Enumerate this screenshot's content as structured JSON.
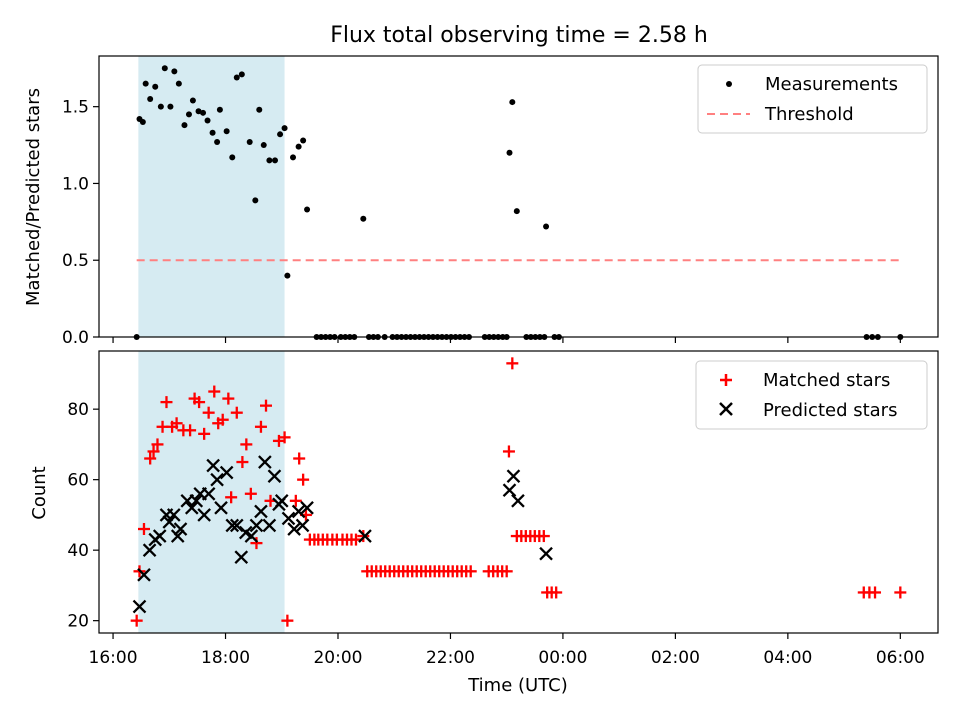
{
  "chart_data": [
    {
      "type": "scatter",
      "title": "Flux total observing time = 2.58 h",
      "xlabel": "",
      "ylabel": "Matched/Predicted stars",
      "ylim": [
        0,
        1.83
      ],
      "yticks": [
        "0.0",
        "0.5",
        "1.0",
        "1.5"
      ],
      "ytick_values": [
        0,
        0.5,
        1.0,
        1.5
      ],
      "shaded_interval": {
        "start_h": 16.45,
        "end_h": 19.05,
        "color": "#add8e6"
      },
      "series": [
        {
          "name": "Measurements",
          "marker": "dot",
          "color": "#000000",
          "points": [
            [
              16.42,
              0
            ],
            [
              16.47,
              1.42
            ],
            [
              16.53,
              1.4
            ],
            [
              16.58,
              1.65
            ],
            [
              16.66,
              1.55
            ],
            [
              16.75,
              1.63
            ],
            [
              16.85,
              1.5
            ],
            [
              16.92,
              1.75
            ],
            [
              17.02,
              1.5
            ],
            [
              17.09,
              1.73
            ],
            [
              17.17,
              1.65
            ],
            [
              17.27,
              1.38
            ],
            [
              17.35,
              1.45
            ],
            [
              17.42,
              1.54
            ],
            [
              17.52,
              1.47
            ],
            [
              17.6,
              1.46
            ],
            [
              17.68,
              1.41
            ],
            [
              17.77,
              1.33
            ],
            [
              17.85,
              1.27
            ],
            [
              17.9,
              1.48
            ],
            [
              18.02,
              1.34
            ],
            [
              18.12,
              1.17
            ],
            [
              18.2,
              1.69
            ],
            [
              18.29,
              1.71
            ],
            [
              18.43,
              1.27
            ],
            [
              18.53,
              0.89
            ],
            [
              18.6,
              1.48
            ],
            [
              18.68,
              1.25
            ],
            [
              18.78,
              1.15
            ],
            [
              18.88,
              1.15
            ],
            [
              18.97,
              1.32
            ],
            [
              19.05,
              1.36
            ],
            [
              19.1,
              0.4
            ],
            [
              19.2,
              1.17
            ],
            [
              19.3,
              1.24
            ],
            [
              19.38,
              1.28
            ],
            [
              19.45,
              0.83
            ],
            [
              19.62,
              0
            ],
            [
              19.7,
              0
            ],
            [
              19.78,
              0
            ],
            [
              19.86,
              0
            ],
            [
              19.94,
              0
            ],
            [
              20.05,
              0
            ],
            [
              20.13,
              0
            ],
            [
              20.21,
              0
            ],
            [
              20.29,
              0
            ],
            [
              20.45,
              0.77
            ],
            [
              20.55,
              0
            ],
            [
              20.63,
              0
            ],
            [
              20.71,
              0
            ],
            [
              20.83,
              0
            ],
            [
              20.97,
              0
            ],
            [
              21.05,
              0
            ],
            [
              21.13,
              0
            ],
            [
              21.21,
              0
            ],
            [
              21.29,
              0
            ],
            [
              21.37,
              0
            ],
            [
              21.45,
              0
            ],
            [
              21.53,
              0
            ],
            [
              21.61,
              0
            ],
            [
              21.69,
              0
            ],
            [
              21.77,
              0
            ],
            [
              21.85,
              0
            ],
            [
              21.93,
              0
            ],
            [
              22.01,
              0
            ],
            [
              22.09,
              0
            ],
            [
              22.17,
              0
            ],
            [
              22.25,
              0
            ],
            [
              22.33,
              0
            ],
            [
              22.61,
              0
            ],
            [
              22.69,
              0
            ],
            [
              22.77,
              0
            ],
            [
              22.85,
              0
            ],
            [
              22.93,
              0
            ],
            [
              23.0,
              0
            ],
            [
              23.05,
              1.2
            ],
            [
              23.1,
              1.53
            ],
            [
              23.18,
              0.82
            ],
            [
              23.35,
              0
            ],
            [
              23.43,
              0
            ],
            [
              23.51,
              0
            ],
            [
              23.59,
              0
            ],
            [
              23.67,
              0
            ],
            [
              23.7,
              0.72
            ],
            [
              23.85,
              0
            ],
            [
              23.93,
              0
            ],
            [
              29.4,
              0
            ],
            [
              29.5,
              0
            ],
            [
              29.6,
              0
            ],
            [
              30.0,
              0
            ]
          ]
        },
        {
          "name": "Threshold",
          "marker": "dashed-line",
          "color": "#ff8080",
          "points": [
            [
              16.42,
              0.5
            ],
            [
              30.0,
              0.5
            ]
          ]
        }
      ],
      "legend": "top-right"
    },
    {
      "type": "scatter",
      "title": "",
      "xlabel": "Time (UTC)",
      "ylabel": "Count",
      "ylim": [
        16.5,
        96.5
      ],
      "yticks": [
        "20",
        "40",
        "60",
        "80"
      ],
      "ytick_values": [
        20,
        40,
        60,
        80
      ],
      "xlim_h": [
        15.75,
        30.67
      ],
      "xticks": [
        "16:00",
        "18:00",
        "20:00",
        "22:00",
        "00:00",
        "02:00",
        "04:00",
        "06:00"
      ],
      "xtick_values_h": [
        16,
        18,
        20,
        22,
        24,
        26,
        28,
        30
      ],
      "shaded_interval": {
        "start_h": 16.45,
        "end_h": 19.05,
        "color": "#add8e6"
      },
      "series": [
        {
          "name": "Matched stars",
          "marker": "plus",
          "color": "#ff0000",
          "points": [
            [
              16.42,
              20
            ],
            [
              16.47,
              34
            ],
            [
              16.55,
              46
            ],
            [
              16.66,
              66
            ],
            [
              16.72,
              68
            ],
            [
              16.79,
              70
            ],
            [
              16.88,
              75
            ],
            [
              16.95,
              82
            ],
            [
              17.05,
              75
            ],
            [
              17.13,
              76
            ],
            [
              17.25,
              74
            ],
            [
              17.37,
              74
            ],
            [
              17.45,
              83
            ],
            [
              17.53,
              82
            ],
            [
              17.62,
              73
            ],
            [
              17.7,
              79
            ],
            [
              17.8,
              85
            ],
            [
              17.87,
              76
            ],
            [
              17.95,
              77
            ],
            [
              18.05,
              83
            ],
            [
              18.1,
              55
            ],
            [
              18.2,
              79
            ],
            [
              18.3,
              65
            ],
            [
              18.37,
              70
            ],
            [
              18.45,
              56
            ],
            [
              18.55,
              42
            ],
            [
              18.63,
              75
            ],
            [
              18.72,
              81
            ],
            [
              18.8,
              54
            ],
            [
              18.95,
              71
            ],
            [
              19.05,
              72
            ],
            [
              19.1,
              20
            ],
            [
              19.25,
              54
            ],
            [
              19.31,
              66
            ],
            [
              19.38,
              60
            ],
            [
              19.43,
              50
            ],
            [
              19.5,
              43
            ],
            [
              19.58,
              43
            ],
            [
              19.65,
              43
            ],
            [
              19.73,
              43
            ],
            [
              19.81,
              43
            ],
            [
              19.9,
              43
            ],
            [
              19.98,
              43
            ],
            [
              20.08,
              43
            ],
            [
              20.16,
              43
            ],
            [
              20.24,
              43
            ],
            [
              20.32,
              43
            ],
            [
              20.45,
              44
            ],
            [
              20.52,
              34
            ],
            [
              20.6,
              34
            ],
            [
              20.68,
              34
            ],
            [
              20.76,
              34
            ],
            [
              20.84,
              34
            ],
            [
              20.92,
              34
            ],
            [
              21.0,
              34
            ],
            [
              21.08,
              34
            ],
            [
              21.16,
              34
            ],
            [
              21.24,
              34
            ],
            [
              21.32,
              34
            ],
            [
              21.4,
              34
            ],
            [
              21.48,
              34
            ],
            [
              21.56,
              34
            ],
            [
              21.64,
              34
            ],
            [
              21.72,
              34
            ],
            [
              21.8,
              34
            ],
            [
              21.88,
              34
            ],
            [
              21.96,
              34
            ],
            [
              22.04,
              34
            ],
            [
              22.12,
              34
            ],
            [
              22.2,
              34
            ],
            [
              22.28,
              34
            ],
            [
              22.36,
              34
            ],
            [
              22.68,
              34
            ],
            [
              22.76,
              34
            ],
            [
              22.84,
              34
            ],
            [
              22.92,
              34
            ],
            [
              23.0,
              34
            ],
            [
              23.04,
              68
            ],
            [
              23.1,
              93
            ],
            [
              23.18,
              44
            ],
            [
              23.26,
              44
            ],
            [
              23.34,
              44
            ],
            [
              23.42,
              44
            ],
            [
              23.5,
              44
            ],
            [
              23.58,
              44
            ],
            [
              23.66,
              44
            ],
            [
              23.72,
              28
            ],
            [
              23.8,
              28
            ],
            [
              23.88,
              28
            ],
            [
              29.35,
              28
            ],
            [
              29.45,
              28
            ],
            [
              29.55,
              28
            ],
            [
              30.0,
              28
            ]
          ]
        },
        {
          "name": "Predicted stars",
          "marker": "x",
          "color": "#000000",
          "points": [
            [
              16.47,
              24
            ],
            [
              16.55,
              33
            ],
            [
              16.65,
              40
            ],
            [
              16.75,
              43
            ],
            [
              16.83,
              44
            ],
            [
              16.95,
              50
            ],
            [
              17.0,
              48
            ],
            [
              17.08,
              50
            ],
            [
              17.15,
              44
            ],
            [
              17.2,
              46
            ],
            [
              17.32,
              54
            ],
            [
              17.4,
              52
            ],
            [
              17.48,
              54
            ],
            [
              17.55,
              56
            ],
            [
              17.62,
              50
            ],
            [
              17.7,
              56
            ],
            [
              17.78,
              64
            ],
            [
              17.85,
              60
            ],
            [
              17.92,
              52
            ],
            [
              18.02,
              62
            ],
            [
              18.12,
              47
            ],
            [
              18.2,
              47
            ],
            [
              18.28,
              38
            ],
            [
              18.36,
              45
            ],
            [
              18.46,
              44
            ],
            [
              18.55,
              47
            ],
            [
              18.63,
              51
            ],
            [
              18.7,
              65
            ],
            [
              18.78,
              47
            ],
            [
              18.87,
              61
            ],
            [
              18.95,
              53
            ],
            [
              19.0,
              54
            ],
            [
              19.12,
              49
            ],
            [
              19.22,
              46
            ],
            [
              19.3,
              51
            ],
            [
              19.37,
              47
            ],
            [
              19.45,
              52
            ],
            [
              20.48,
              44
            ],
            [
              23.05,
              57
            ],
            [
              23.12,
              61
            ],
            [
              23.2,
              54
            ],
            [
              23.7,
              39
            ]
          ]
        }
      ],
      "legend": "top-right"
    }
  ]
}
